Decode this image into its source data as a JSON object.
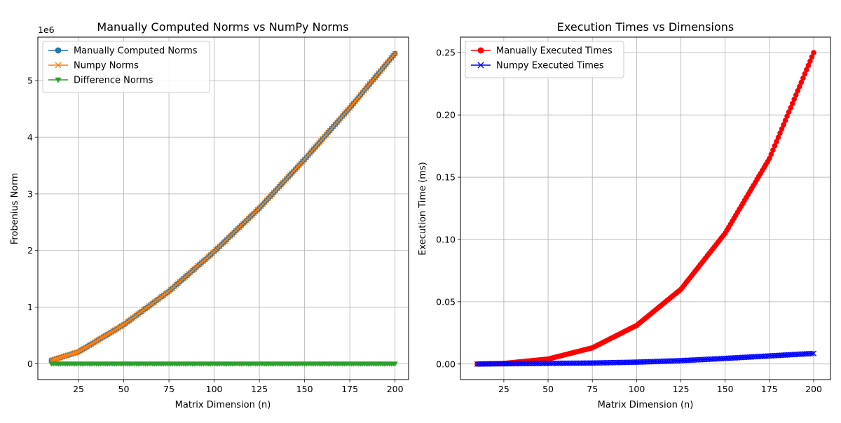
{
  "figure": {
    "charts": [
      {
        "id": "left",
        "title": "Manually Computed Norms vs NumPy Norms",
        "xlabel": "Matrix Dimension (n)",
        "ylabel": "Frobenius Norm",
        "offset_text": "1e6"
      },
      {
        "id": "right",
        "title": "Execution Times vs Dimensions",
        "xlabel": "Matrix Dimension (n)",
        "ylabel": "Execution Time (ms)",
        "offset_text": ""
      }
    ]
  },
  "chart_data": [
    {
      "type": "line",
      "title": "Manually Computed Norms vs NumPy Norms",
      "xlabel": "Matrix Dimension (n)",
      "ylabel": "Frobenius Norm",
      "x_range": [
        10,
        200
      ],
      "xlim": [
        2.5,
        207.5
      ],
      "ylim": [
        -0.28,
        5.77
      ],
      "y_scale_multiplier": "1e6",
      "x_ticks": [
        25,
        50,
        75,
        100,
        125,
        150,
        175,
        200
      ],
      "x_tick_labels": [
        "25",
        "50",
        "75",
        "100",
        "125",
        "150",
        "175",
        "200"
      ],
      "y_ticks": [
        0,
        1,
        2,
        3,
        4,
        5
      ],
      "y_tick_labels": [
        "0",
        "1",
        "2",
        "3",
        "4",
        "5"
      ],
      "grid": true,
      "legend_position": "top-left",
      "series": [
        {
          "name": "Manually Computed Norms",
          "color": "#1f77b4",
          "marker": "circle",
          "x": [
            10,
            25,
            50,
            75,
            100,
            125,
            150,
            175,
            200
          ],
          "y": [
            0.06,
            0.21,
            0.69,
            1.28,
            1.98,
            2.75,
            3.61,
            4.52,
            5.48
          ]
        },
        {
          "name": "Numpy Norms",
          "color": "#ff7f0e",
          "marker": "x",
          "x": [
            10,
            25,
            50,
            75,
            100,
            125,
            150,
            175,
            200
          ],
          "y": [
            0.06,
            0.21,
            0.69,
            1.28,
            1.98,
            2.75,
            3.61,
            4.52,
            5.48
          ]
        },
        {
          "name": "Difference Norms",
          "color": "#2ca02c",
          "marker": "triangle-down",
          "x": [
            10,
            25,
            50,
            75,
            100,
            125,
            150,
            175,
            200
          ],
          "y": [
            0,
            0,
            0,
            0,
            0,
            0,
            0,
            0,
            0
          ]
        }
      ]
    },
    {
      "type": "line",
      "title": "Execution Times vs Dimensions",
      "xlabel": "Matrix Dimension (n)",
      "ylabel": "Execution Time (ms)",
      "x_range": [
        10,
        200
      ],
      "xlim": [
        0.5,
        209.5
      ],
      "ylim": [
        -0.0125,
        0.2625
      ],
      "x_ticks": [
        25,
        50,
        75,
        100,
        125,
        150,
        175,
        200
      ],
      "x_tick_labels": [
        "25",
        "50",
        "75",
        "100",
        "125",
        "150",
        "175",
        "200"
      ],
      "y_ticks": [
        0,
        0.05,
        0.1,
        0.15,
        0.2,
        0.25
      ],
      "y_tick_labels": [
        "0.00",
        "0.05",
        "0.10",
        "0.15",
        "0.20",
        "0.25"
      ],
      "grid": true,
      "legend_position": "top-left",
      "series": [
        {
          "name": "Manually Executed Times",
          "color": "#ff0000",
          "marker": "circle",
          "x": [
            10,
            25,
            50,
            75,
            100,
            125,
            150,
            175,
            200
          ],
          "y": [
            0.0,
            0.0005,
            0.004,
            0.013,
            0.031,
            0.06,
            0.105,
            0.165,
            0.25
          ]
        },
        {
          "name": "Numpy Executed Times",
          "color": "#0000ff",
          "marker": "x",
          "x": [
            10,
            25,
            50,
            75,
            100,
            125,
            150,
            175,
            200
          ],
          "y": [
            0.0,
            0.0002,
            0.0005,
            0.0008,
            0.0015,
            0.0027,
            0.0045,
            0.0065,
            0.0085
          ]
        }
      ]
    }
  ]
}
